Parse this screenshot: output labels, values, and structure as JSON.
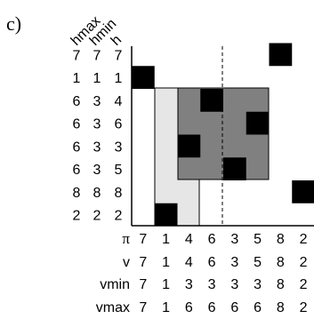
{
  "panel_label": "c)",
  "column_headers": [
    "hmax",
    "hmin",
    "h"
  ],
  "row_values": [
    {
      "hmax": "7",
      "hmin": "7",
      "h": "7"
    },
    {
      "hmax": "1",
      "hmin": "1",
      "h": "1"
    },
    {
      "hmax": "6",
      "hmin": "3",
      "h": "4"
    },
    {
      "hmax": "6",
      "hmin": "3",
      "h": "6"
    },
    {
      "hmax": "6",
      "hmin": "3",
      "h": "3"
    },
    {
      "hmax": "6",
      "hmin": "3",
      "h": "5"
    },
    {
      "hmax": "8",
      "hmin": "8",
      "h": "8"
    },
    {
      "hmax": "2",
      "hmin": "2",
      "h": "2"
    }
  ],
  "bottom_rows": [
    {
      "label": "π",
      "values": [
        "7",
        "1",
        "4",
        "6",
        "3",
        "5",
        "8",
        "2"
      ]
    },
    {
      "label": "v",
      "values": [
        "7",
        "1",
        "4",
        "6",
        "3",
        "5",
        "8",
        "2"
      ]
    },
    {
      "label": "vmin",
      "values": [
        "7",
        "1",
        "3",
        "3",
        "3",
        "3",
        "8",
        "2"
      ]
    },
    {
      "label": "vmax",
      "values": [
        "7",
        "1",
        "6",
        "6",
        "6",
        "6",
        "8",
        "2"
      ]
    }
  ],
  "filled_cells": [
    {
      "row": 1,
      "col": 7
    },
    {
      "row": 2,
      "col": 1
    },
    {
      "row": 3,
      "col": 4
    },
    {
      "row": 4,
      "col": 6
    },
    {
      "row": 5,
      "col": 3
    },
    {
      "row": 6,
      "col": 5
    },
    {
      "row": 7,
      "col": 8
    },
    {
      "row": 8,
      "col": 2
    }
  ],
  "light_region": {
    "col_from": 2,
    "col_to": 3,
    "row_from": 3,
    "row_to": 8
  },
  "dark_region": {
    "col_from": 3,
    "col_to": 6,
    "row_from": 3,
    "row_to": 6
  },
  "dashed_line_after_col": 4,
  "colors": {
    "cell": "#000000",
    "dark_region": "#808080",
    "light_region": "#e6e6e6",
    "axis": "#000000"
  }
}
